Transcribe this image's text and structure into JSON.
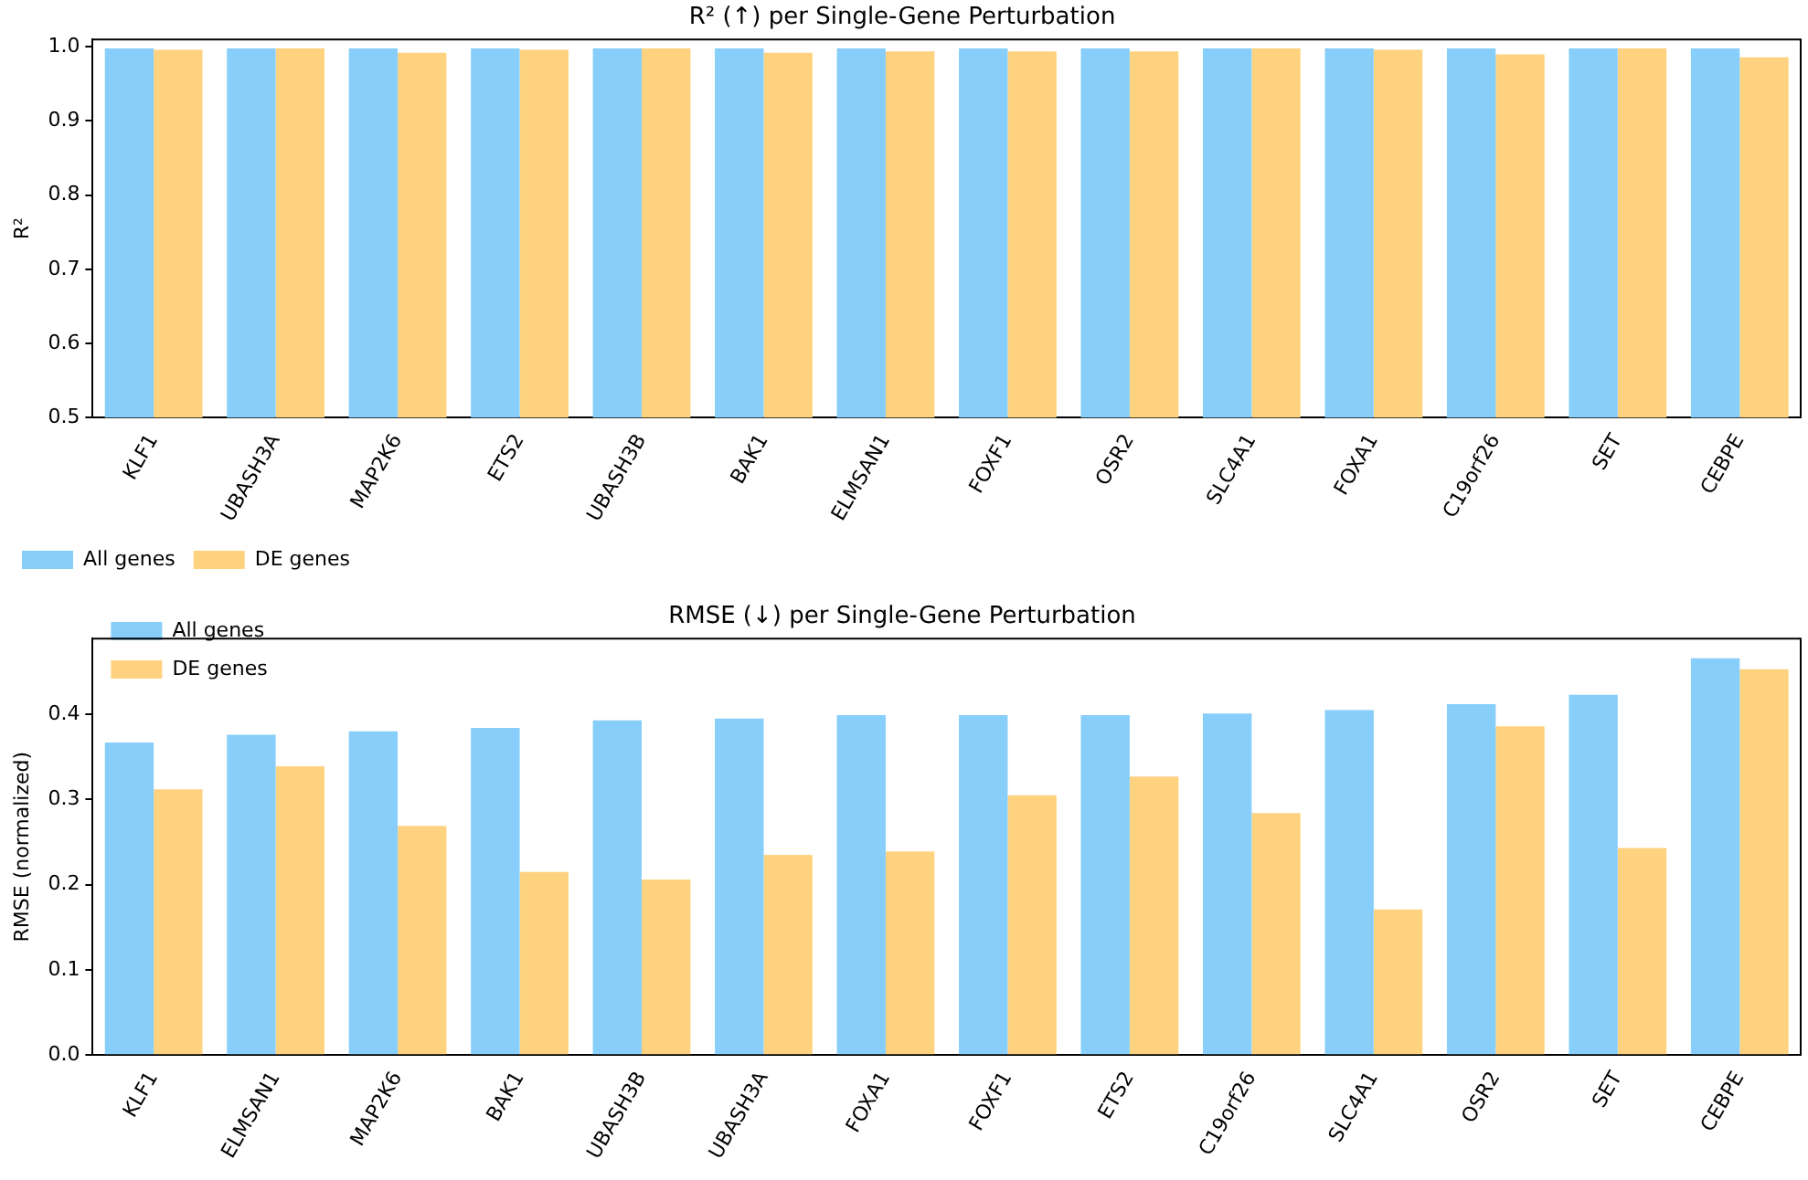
{
  "chart_data": [
    {
      "type": "bar",
      "title": "R² (↑) per Single-Gene Perturbation",
      "ylabel": "R²",
      "categories": [
        "KLF1",
        "UBASH3A",
        "MAP2K6",
        "ETS2",
        "UBASH3B",
        "BAK1",
        "ELMSAN1",
        "FOXF1",
        "OSR2",
        "SLC4A1",
        "FOXA1",
        "C19orf26",
        "SET",
        "CEBPE"
      ],
      "series": [
        {
          "name": "All genes",
          "color": "#87cefa",
          "values": [
            0.998,
            0.998,
            0.998,
            0.998,
            0.998,
            0.998,
            0.998,
            0.998,
            0.998,
            0.998,
            0.998,
            0.998,
            0.998,
            0.998
          ]
        },
        {
          "name": "DE genes",
          "color": "#ffd27f",
          "values": [
            0.996,
            0.998,
            0.992,
            0.996,
            0.998,
            0.992,
            0.994,
            0.994,
            0.994,
            0.998,
            0.996,
            0.99,
            0.998,
            0.986
          ]
        }
      ],
      "ylim": [
        0.5,
        1.01
      ],
      "yticks": [
        0.5,
        {
          "value": 0.6,
          "label": "0.6"
        },
        {
          "value": 0.7,
          "label": "0.7"
        },
        {
          "value": 0.8,
          "label": "0.8"
        },
        {
          "value": 0.9,
          "label": "0.9"
        },
        {
          "value": 1.0,
          "label": "1.0"
        }
      ],
      "legend": "bottom left",
      "grid": false
    },
    {
      "type": "bar",
      "title": "RMSE (↓) per Single-Gene Perturbation",
      "ylabel": "RMSE (normalized)",
      "categories": [
        "KLF1",
        "ELMSAN1",
        "MAP2K6",
        "BAK1",
        "UBASH3B",
        "UBASH3A",
        "FOXA1",
        "FOXF1",
        "ETS2",
        "C19orf26",
        "SLC4A1",
        "OSR2",
        "SET",
        "CEBPE"
      ],
      "series": [
        {
          "name": "All genes",
          "color": "#87cefa",
          "values": [
            0.367,
            0.376,
            0.38,
            0.384,
            0.393,
            0.395,
            0.399,
            0.399,
            0.399,
            0.401,
            0.405,
            0.412,
            0.423,
            0.466
          ]
        },
        {
          "name": "DE genes",
          "color": "#ffd27f",
          "values": [
            0.312,
            0.339,
            0.269,
            0.215,
            0.206,
            0.235,
            0.239,
            0.305,
            0.327,
            0.284,
            0.171,
            0.386,
            0.243,
            0.453
          ]
        }
      ],
      "ylim": [
        0,
        0.489
      ],
      "yticks": [
        {
          "value": 0,
          "label": "0.0"
        },
        0.1,
        0.2,
        0.3,
        0.4
      ],
      "legend": "top left",
      "grid": false
    }
  ]
}
